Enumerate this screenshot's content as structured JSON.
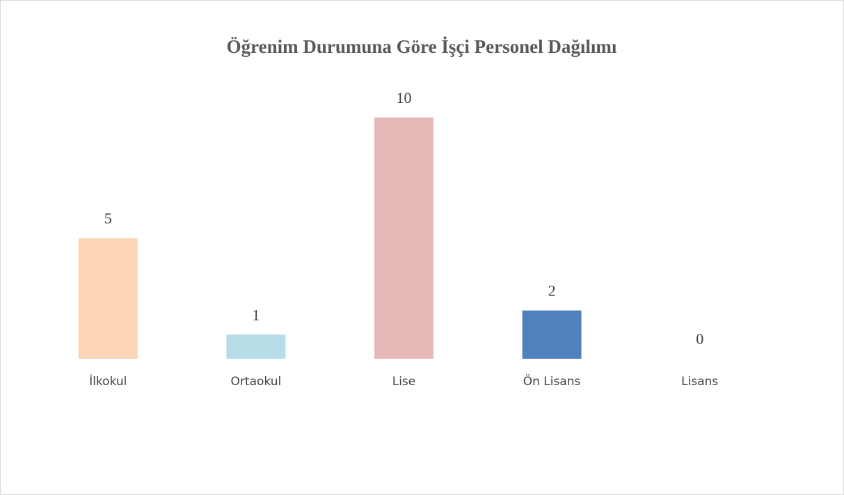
{
  "chart_data": {
    "type": "bar",
    "title": "Öğrenim Durumuna Göre İşçi Personel Dağılımı",
    "categories": [
      "İlkokul",
      "Ortaokul",
      "Lise",
      "Ön Lisans",
      "Lisans"
    ],
    "values": [
      5,
      1,
      10,
      2,
      0
    ],
    "colors": [
      "#fbd5b5",
      "#b7dde8",
      "#e6b9b8",
      "#4f81bd",
      "#8064a2"
    ]
  }
}
